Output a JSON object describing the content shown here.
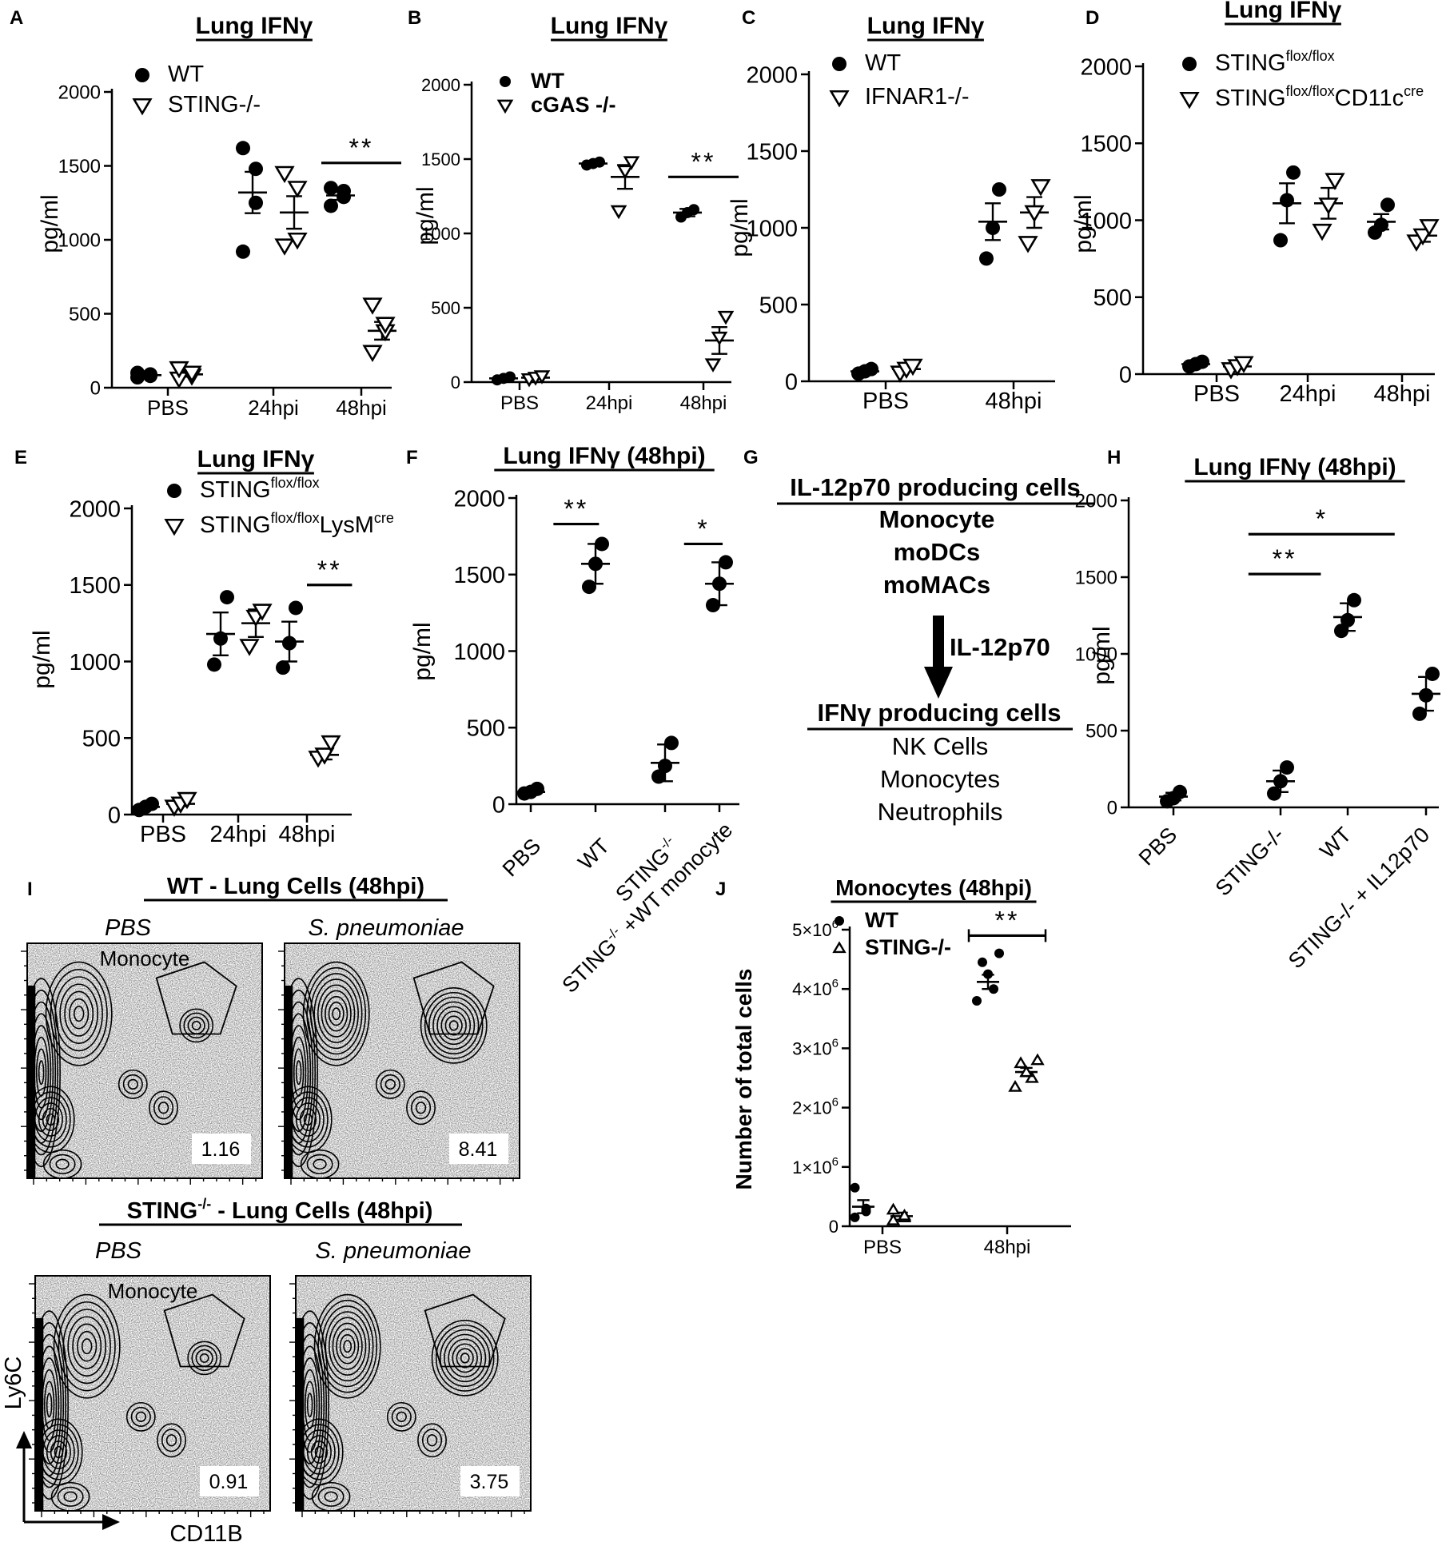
{
  "panels": {
    "A": {
      "letter": "A",
      "title": "Lung IFNγ",
      "ylabel": "pg/ml",
      "ylim": [
        0,
        2000
      ],
      "yticks": [
        0,
        500,
        1000,
        1500,
        2000
      ],
      "categories": [
        "PBS",
        "24hpi",
        "48hpi"
      ],
      "legend": [
        {
          "label": "WT",
          "marker": "circle"
        },
        {
          "label": "STING-/-",
          "marker": "tri-down-open"
        }
      ],
      "groups": [
        {
          "cat": 0,
          "series": 0,
          "mean": 85,
          "sem": 8,
          "points": [
            70,
            80,
            90,
            100
          ]
        },
        {
          "cat": 0,
          "series": 1,
          "mean": 90,
          "sem": 15,
          "points": [
            60,
            80,
            100,
            130
          ]
        },
        {
          "cat": 1,
          "series": 0,
          "mean": 1320,
          "sem": 140,
          "points": [
            920,
            1250,
            1480,
            1620
          ]
        },
        {
          "cat": 1,
          "series": 1,
          "mean": 1185,
          "sem": 110,
          "points": [
            960,
            1000,
            1350,
            1450
          ]
        },
        {
          "cat": 2,
          "series": 0,
          "mean": 1300,
          "sem": 30,
          "points": [
            1230,
            1290,
            1330,
            1350
          ]
        },
        {
          "cat": 2,
          "series": 1,
          "mean": 385,
          "sem": 60,
          "points": [
            240,
            380,
            430,
            560
          ]
        }
      ],
      "annotations": [
        {
          "text": "**",
          "cats": [
            2,
            2
          ],
          "y": 1520
        }
      ]
    },
    "B": {
      "letter": "B",
      "title": "Lung IFNγ",
      "ylabel": "pg/ml",
      "ylim": [
        0,
        2000
      ],
      "yticks": [
        0,
        500,
        1000,
        1500,
        2000
      ],
      "categories": [
        "PBS",
        "24hpi",
        "48hpi"
      ],
      "legend": [
        {
          "label": "WT",
          "marker": "circle"
        },
        {
          "label": "cGAS -/-",
          "marker": "tri-down-open"
        }
      ],
      "groups": [
        {
          "cat": 0,
          "series": 0,
          "mean": 25,
          "sem": 5,
          "points": [
            15,
            25,
            35
          ]
        },
        {
          "cat": 0,
          "series": 1,
          "mean": 30,
          "sem": 5,
          "points": [
            20,
            30,
            40
          ]
        },
        {
          "cat": 1,
          "series": 0,
          "mean": 1470,
          "sem": 10,
          "points": [
            1460,
            1470,
            1480
          ]
        },
        {
          "cat": 1,
          "series": 1,
          "mean": 1380,
          "sem": 80,
          "points": [
            1150,
            1420,
            1480
          ]
        },
        {
          "cat": 2,
          "series": 0,
          "mean": 1140,
          "sem": 25,
          "points": [
            1110,
            1140,
            1160
          ]
        },
        {
          "cat": 2,
          "series": 1,
          "mean": 280,
          "sem": 90,
          "points": [
            120,
            300,
            440
          ]
        }
      ],
      "annotations": [
        {
          "text": "**",
          "cats": [
            2,
            2
          ],
          "y": 1380
        }
      ]
    },
    "C": {
      "letter": "C",
      "title": "Lung IFNγ",
      "ylabel": "pg/ml",
      "ylim": [
        0,
        2000
      ],
      "yticks": [
        0,
        500,
        1000,
        1500,
        2000
      ],
      "categories": [
        "PBS",
        "48hpi"
      ],
      "legend": [
        {
          "label": "WT",
          "marker": "circle"
        },
        {
          "label": "IFNAR1-/-",
          "marker": "tri-down-open"
        }
      ],
      "groups": [
        {
          "cat": 0,
          "series": 0,
          "mean": 65,
          "sem": 10,
          "points": [
            50,
            65,
            80
          ]
        },
        {
          "cat": 0,
          "series": 1,
          "mean": 80,
          "sem": 12,
          "points": [
            55,
            80,
            100
          ]
        },
        {
          "cat": 1,
          "series": 0,
          "mean": 1040,
          "sem": 120,
          "points": [
            800,
            1000,
            1250
          ]
        },
        {
          "cat": 1,
          "series": 1,
          "mean": 1100,
          "sem": 100,
          "points": [
            900,
            1100,
            1270
          ]
        }
      ],
      "annotations": []
    },
    "D": {
      "letter": "D",
      "title": "Lung IFNγ",
      "ylabel": "pg/ml",
      "ylim": [
        0,
        2000
      ],
      "yticks": [
        0,
        500,
        1000,
        1500,
        2000
      ],
      "categories": [
        "PBS",
        "24hpi",
        "48hpi"
      ],
      "legend": [
        {
          "label": "STING",
          "sup": "flox/flox",
          "marker": "circle"
        },
        {
          "label": "STING",
          "sup": "flox/flox",
          "label2": "CD11c",
          "sup2": "cre",
          "marker": "tri-down-open"
        }
      ],
      "groups": [
        {
          "cat": 0,
          "series": 0,
          "mean": 65,
          "sem": 10,
          "points": [
            50,
            65,
            80
          ]
        },
        {
          "cat": 0,
          "series": 1,
          "mean": 50,
          "sem": 15,
          "points": [
            30,
            50,
            70
          ]
        },
        {
          "cat": 1,
          "series": 0,
          "mean": 1110,
          "sem": 130,
          "points": [
            870,
            1130,
            1310
          ]
        },
        {
          "cat": 1,
          "series": 1,
          "mean": 1110,
          "sem": 100,
          "points": [
            930,
            1100,
            1260
          ]
        },
        {
          "cat": 2,
          "series": 0,
          "mean": 990,
          "sem": 50,
          "points": [
            920,
            970,
            1100
          ]
        },
        {
          "cat": 2,
          "series": 1,
          "mean": 900,
          "sem": 40,
          "points": [
            860,
            900,
            960
          ]
        }
      ],
      "annotations": []
    },
    "E": {
      "letter": "E",
      "title": "Lung IFNγ",
      "ylabel": "pg/ml",
      "ylim": [
        0,
        2000
      ],
      "yticks": [
        0,
        500,
        1000,
        1500,
        2000
      ],
      "categories": [
        "PBS",
        "24hpi",
        "48hpi"
      ],
      "legend": [
        {
          "label": "STING",
          "sup": "flox/flox",
          "marker": "circle"
        },
        {
          "label": "STING",
          "sup": "flox/flox",
          "label2": "LysM",
          "sup2": "cre",
          "marker": "tri-down-open"
        }
      ],
      "groups": [
        {
          "cat": 0,
          "series": 0,
          "mean": 50,
          "sem": 10,
          "points": [
            30,
            50,
            70
          ]
        },
        {
          "cat": 0,
          "series": 1,
          "mean": 70,
          "sem": 15,
          "points": [
            50,
            70,
            100
          ]
        },
        {
          "cat": 1,
          "series": 0,
          "mean": 1180,
          "sem": 140,
          "points": [
            980,
            1150,
            1420
          ]
        },
        {
          "cat": 1,
          "series": 1,
          "mean": 1250,
          "sem": 90,
          "points": [
            1100,
            1290,
            1330
          ]
        },
        {
          "cat": 2,
          "series": 0,
          "mean": 1130,
          "sem": 130,
          "points": [
            960,
            1120,
            1350
          ]
        },
        {
          "cat": 2,
          "series": 1,
          "mean": 390,
          "sem": 30,
          "points": [
            370,
            390,
            470
          ]
        }
      ],
      "annotations": [
        {
          "text": "**",
          "cats": [
            2,
            2.6
          ],
          "y": 1500
        }
      ]
    },
    "F": {
      "letter": "F",
      "title": "Lung IFNγ (48hpi)",
      "ylabel": "pg/ml",
      "ylim": [
        0,
        2000
      ],
      "yticks": [
        0,
        500,
        1000,
        1500,
        2000
      ],
      "categories": [
        "PBS",
        "WT",
        "STING",
        "STING"
      ],
      "groups": [
        {
          "cat": 0,
          "series": 0,
          "mean": 80,
          "sem": 15,
          "points": [
            70,
            80,
            100
          ]
        },
        {
          "cat": 1,
          "series": 0,
          "mean": 1570,
          "sem": 130,
          "points": [
            1420,
            1570,
            1700
          ]
        },
        {
          "cat": 2,
          "series": 0,
          "mean": 270,
          "sem": 120,
          "points": [
            180,
            250,
            400
          ]
        },
        {
          "cat": 3,
          "series": 0,
          "mean": 1440,
          "sem": 140,
          "points": [
            1300,
            1440,
            1580
          ]
        }
      ],
      "annotations": [
        {
          "text": "**",
          "cats": [
            0.35,
            1.05
          ],
          "y": 1830
        },
        {
          "text": "*",
          "cats": [
            2.35,
            3.05
          ],
          "y": 1700
        }
      ]
    },
    "H": {
      "letter": "H",
      "title": "Lung IFNγ (48hpi)",
      "ylabel": "pg/ml",
      "ylim": [
        0,
        2000
      ],
      "yticks": [
        0,
        500,
        1000,
        1500,
        2000
      ],
      "categories": [
        "PBS",
        "STING-/-",
        "WT",
        "STING-/- + IL12p70"
      ],
      "groups": [
        {
          "cat": 0,
          "series": 0,
          "mean": 70,
          "sem": 25,
          "points": [
            40,
            60,
            100
          ]
        },
        {
          "cat": 1,
          "series": 0,
          "mean": 170,
          "sem": 70,
          "points": [
            90,
            170,
            260
          ]
        },
        {
          "cat": 2,
          "series": 0,
          "mean": 1240,
          "sem": 90,
          "points": [
            1150,
            1220,
            1350
          ]
        },
        {
          "cat": 3,
          "series": 0,
          "mean": 740,
          "sem": 110,
          "points": [
            610,
            730,
            870
          ]
        }
      ],
      "annotations": [
        {
          "text": "**",
          "cats": [
            0.7,
            1.6
          ],
          "y": 1520
        },
        {
          "text": "*",
          "cats": [
            0.7,
            2.6
          ],
          "y": 1780
        }
      ]
    },
    "J": {
      "letter": "J",
      "title": "Monocytes (48hpi)",
      "ylabel": "Number of total cells",
      "ylim": [
        0,
        5000000
      ],
      "yticks": [
        {
          "base": "1×10",
          "exp": "6",
          "v": 1000000
        },
        {
          "base": "2×10",
          "exp": "6",
          "v": 2000000
        },
        {
          "base": "3×10",
          "exp": "6",
          "v": 3000000
        },
        {
          "base": "4×10",
          "exp": "6",
          "v": 4000000
        },
        {
          "base": "5×10",
          "exp": "6",
          "v": 5000000
        }
      ],
      "zero_tick": "0",
      "categories": [
        "PBS",
        "48hpi"
      ],
      "legend": [
        {
          "label": "WT",
          "marker": "circle"
        },
        {
          "label": "STING-/-",
          "marker": "tri-up-open"
        }
      ],
      "groups": [
        {
          "cat": 0,
          "series": 0,
          "mean": 330000,
          "sem": 110000,
          "points": [
            150000,
            250000,
            300000,
            650000
          ]
        },
        {
          "cat": 0,
          "series": 1,
          "mean": 170000,
          "sem": 60000,
          "points": [
            100000,
            150000,
            180000,
            280000
          ]
        },
        {
          "cat": 1,
          "series": 0,
          "mean": 4120000,
          "sem": 120000,
          "points": [
            3800000,
            4000000,
            4250000,
            4450000,
            4600000
          ]
        },
        {
          "cat": 1,
          "series": 1,
          "mean": 2600000,
          "sem": 70000,
          "points": [
            2350000,
            2500000,
            2600000,
            2750000,
            2800000
          ]
        }
      ],
      "annotations": [
        {
          "text": "**",
          "cats": [
            1,
            1
          ],
          "y": 4900000
        }
      ]
    }
  },
  "panelG": {
    "letter": "G",
    "heading1": "IL-12p70 producing cells",
    "cells1": [
      "Monocyte",
      "moDCs",
      "moMACs"
    ],
    "arrow_label": "IL-12p70",
    "heading2": "IFNγ producing cells",
    "cells2": [
      "NK Cells",
      "Monocytes",
      "Neutrophils"
    ]
  },
  "panelF_xlabels": {
    "pbs": "PBS",
    "wt": "WT",
    "sting": "STING",
    "sting_sup": "-/-",
    "combo": "STING",
    "combo_sup": "-/-",
    "combo_rest": " +WT monocyte"
  },
  "panelI": {
    "letter": "I",
    "title_wt": "WT - Lung Cells (48hpi)",
    "title_sting": "STING",
    "title_sting_sup": "-/-",
    "title_sting_rest": " - Lung Cells (48hpi)",
    "cond_pbs": "PBS",
    "cond_sp": "S. pneumoniae",
    "gate_label": "Monocyte",
    "values": [
      "1.16",
      "8.41",
      "0.91",
      "3.75"
    ],
    "axis_y": "Ly6C",
    "axis_x": "CD11B"
  },
  "chart_data": [
    {
      "type": "scatter",
      "title": "Lung IFNγ",
      "panel": "A",
      "ylabel": "pg/ml",
      "ylim": [
        0,
        2000
      ],
      "categories": [
        "PBS",
        "24hpi",
        "48hpi"
      ],
      "series": [
        {
          "name": "WT",
          "mean": [
            85,
            1320,
            1300
          ]
        },
        {
          "name": "STING-/-",
          "mean": [
            90,
            1185,
            385
          ]
        }
      ]
    },
    {
      "type": "scatter",
      "title": "Lung IFNγ",
      "panel": "B",
      "ylabel": "pg/ml",
      "ylim": [
        0,
        2000
      ],
      "categories": [
        "PBS",
        "24hpi",
        "48hpi"
      ],
      "series": [
        {
          "name": "WT",
          "mean": [
            25,
            1470,
            1140
          ]
        },
        {
          "name": "cGAS -/-",
          "mean": [
            30,
            1380,
            280
          ]
        }
      ]
    },
    {
      "type": "scatter",
      "title": "Lung IFNγ",
      "panel": "C",
      "ylabel": "pg/ml",
      "ylim": [
        0,
        2000
      ],
      "categories": [
        "PBS",
        "48hpi"
      ],
      "series": [
        {
          "name": "WT",
          "mean": [
            65,
            1040
          ]
        },
        {
          "name": "IFNAR1-/-",
          "mean": [
            80,
            1100
          ]
        }
      ]
    },
    {
      "type": "scatter",
      "title": "Lung IFNγ",
      "panel": "D",
      "ylabel": "pg/ml",
      "ylim": [
        0,
        2000
      ],
      "categories": [
        "PBS",
        "24hpi",
        "48hpi"
      ],
      "series": [
        {
          "name": "STING flox/flox",
          "mean": [
            65,
            1110,
            990
          ]
        },
        {
          "name": "STING flox/flox CD11c cre",
          "mean": [
            50,
            1110,
            900
          ]
        }
      ]
    },
    {
      "type": "scatter",
      "title": "Lung IFNγ",
      "panel": "E",
      "ylabel": "pg/ml",
      "ylim": [
        0,
        2000
      ],
      "categories": [
        "PBS",
        "24hpi",
        "48hpi"
      ],
      "series": [
        {
          "name": "STING flox/flox",
          "mean": [
            50,
            1180,
            1130
          ]
        },
        {
          "name": "STING flox/flox LysM cre",
          "mean": [
            70,
            1250,
            390
          ]
        }
      ]
    },
    {
      "type": "scatter",
      "title": "Lung IFNγ (48hpi)",
      "panel": "F",
      "ylabel": "pg/ml",
      "ylim": [
        0,
        2000
      ],
      "categories": [
        "PBS",
        "WT",
        "STING-/-",
        "STING-/- +WT monocyte"
      ],
      "values": [
        80,
        1570,
        270,
        1440
      ]
    },
    {
      "type": "scatter",
      "title": "Lung IFNγ (48hpi)",
      "panel": "H",
      "ylabel": "pg/ml",
      "ylim": [
        0,
        2000
      ],
      "categories": [
        "PBS",
        "STING-/-",
        "WT",
        "STING-/- + IL12p70"
      ],
      "values": [
        70,
        170,
        1240,
        740
      ]
    },
    {
      "type": "scatter",
      "title": "Monocytes (48hpi)",
      "panel": "J",
      "ylabel": "Number of total cells",
      "ylim": [
        0,
        5000000
      ],
      "categories": [
        "PBS",
        "48hpi"
      ],
      "series": [
        {
          "name": "WT",
          "mean": [
            330000,
            4120000
          ]
        },
        {
          "name": "STING-/-",
          "mean": [
            170000,
            2600000
          ]
        }
      ]
    }
  ]
}
